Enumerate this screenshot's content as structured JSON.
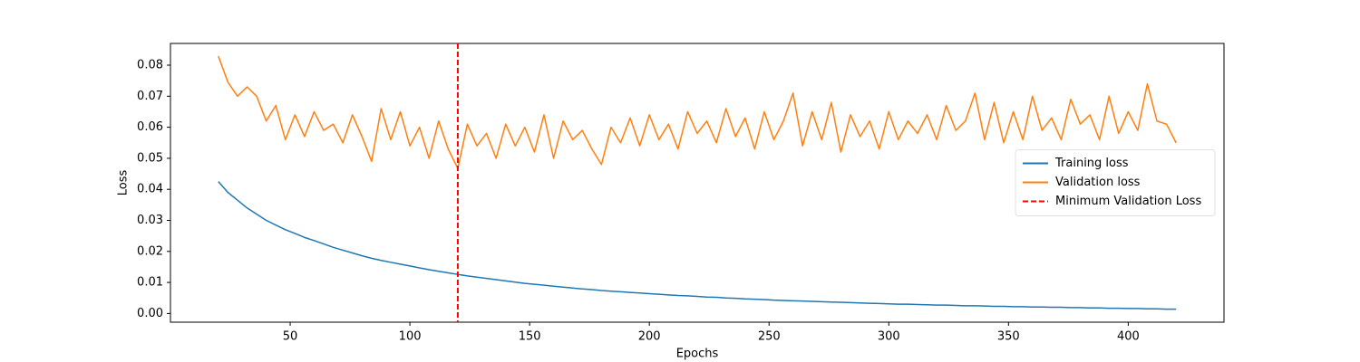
{
  "chart_data": {
    "type": "line",
    "xlabel": "Epochs",
    "ylabel": "Loss",
    "x": [
      20,
      24,
      28,
      32,
      36,
      40,
      44,
      48,
      52,
      56,
      60,
      64,
      68,
      72,
      76,
      80,
      84,
      88,
      92,
      96,
      100,
      104,
      108,
      112,
      116,
      120,
      124,
      128,
      132,
      136,
      140,
      144,
      148,
      152,
      156,
      160,
      164,
      168,
      172,
      176,
      180,
      184,
      188,
      192,
      196,
      200,
      204,
      208,
      212,
      216,
      220,
      224,
      228,
      232,
      236,
      240,
      244,
      248,
      252,
      256,
      260,
      264,
      268,
      272,
      276,
      280,
      284,
      288,
      292,
      296,
      300,
      304,
      308,
      312,
      316,
      320,
      324,
      328,
      332,
      336,
      340,
      344,
      348,
      352,
      356,
      360,
      364,
      368,
      372,
      376,
      380,
      384,
      388,
      392,
      396,
      400,
      404,
      408,
      412,
      416,
      420
    ],
    "series": [
      {
        "name": "Training loss",
        "color": "#1f77b4",
        "values": [
          0.0425,
          0.039,
          0.0365,
          0.034,
          0.032,
          0.03,
          0.0285,
          0.027,
          0.0258,
          0.0245,
          0.0235,
          0.0224,
          0.0213,
          0.0204,
          0.0195,
          0.0186,
          0.0178,
          0.0171,
          0.0165,
          0.0159,
          0.0153,
          0.0147,
          0.0141,
          0.0136,
          0.0131,
          0.0126,
          0.0121,
          0.0117,
          0.0113,
          0.0109,
          0.0105,
          0.0101,
          0.0097,
          0.0094,
          0.0091,
          0.0088,
          0.0085,
          0.0082,
          0.0079,
          0.0077,
          0.0074,
          0.0072,
          0.007,
          0.0068,
          0.0066,
          0.0064,
          0.0062,
          0.006,
          0.0058,
          0.0057,
          0.0055,
          0.0053,
          0.0052,
          0.005,
          0.0049,
          0.0047,
          0.0046,
          0.0045,
          0.0043,
          0.0042,
          0.0041,
          0.004,
          0.0039,
          0.0038,
          0.0037,
          0.0036,
          0.0035,
          0.0034,
          0.0033,
          0.0032,
          0.0031,
          0.003,
          0.003,
          0.0029,
          0.0028,
          0.0027,
          0.0027,
          0.0026,
          0.0025,
          0.0025,
          0.0024,
          0.0023,
          0.0023,
          0.0022,
          0.0022,
          0.0021,
          0.0021,
          0.002,
          0.002,
          0.0019,
          0.0019,
          0.0018,
          0.0018,
          0.0017,
          0.0017,
          0.0016,
          0.0016,
          0.0015,
          0.0015,
          0.0014,
          0.0014
        ]
      },
      {
        "name": "Validation loss",
        "color": "#ff7f0e",
        "values": [
          0.0829,
          0.0745,
          0.07,
          0.073,
          0.07,
          0.062,
          0.067,
          0.056,
          0.064,
          0.057,
          0.065,
          0.059,
          0.061,
          0.055,
          0.064,
          0.057,
          0.049,
          0.066,
          0.056,
          0.065,
          0.054,
          0.06,
          0.05,
          0.062,
          0.053,
          0.0467,
          0.061,
          0.054,
          0.058,
          0.05,
          0.061,
          0.054,
          0.06,
          0.052,
          0.064,
          0.05,
          0.062,
          0.056,
          0.059,
          0.053,
          0.048,
          0.06,
          0.055,
          0.063,
          0.054,
          0.064,
          0.056,
          0.061,
          0.053,
          0.065,
          0.058,
          0.062,
          0.055,
          0.066,
          0.057,
          0.063,
          0.053,
          0.065,
          0.056,
          0.062,
          0.071,
          0.054,
          0.065,
          0.056,
          0.068,
          0.052,
          0.064,
          0.057,
          0.062,
          0.053,
          0.065,
          0.056,
          0.062,
          0.058,
          0.064,
          0.056,
          0.067,
          0.059,
          0.062,
          0.071,
          0.056,
          0.068,
          0.055,
          0.065,
          0.056,
          0.07,
          0.059,
          0.063,
          0.056,
          0.069,
          0.061,
          0.064,
          0.056,
          0.07,
          0.058,
          0.065,
          0.059,
          0.074,
          0.062,
          0.061,
          0.055
        ]
      }
    ],
    "vlines": [
      {
        "name": "Minimum Validation Loss",
        "x": 120,
        "color": "#ff0000",
        "dashed": true
      }
    ],
    "xlim": [
      0,
      440
    ],
    "ylim": [
      -0.0028,
      0.087
    ],
    "xticks": [
      50,
      100,
      150,
      200,
      250,
      300,
      350,
      400
    ],
    "yticks": [
      {
        "value": 0,
        "label": "0.00"
      },
      {
        "value": 0.01,
        "label": "0.01"
      },
      {
        "value": 0.02,
        "label": "0.02"
      },
      {
        "value": 0.03,
        "label": "0.03"
      },
      {
        "value": 0.04,
        "label": "0.04"
      },
      {
        "value": 0.05,
        "label": "0.05"
      },
      {
        "value": 0.06,
        "label": "0.06"
      },
      {
        "value": 0.07,
        "label": "0.07"
      },
      {
        "value": 0.08,
        "label": "0.08"
      }
    ],
    "legend": "center right"
  }
}
